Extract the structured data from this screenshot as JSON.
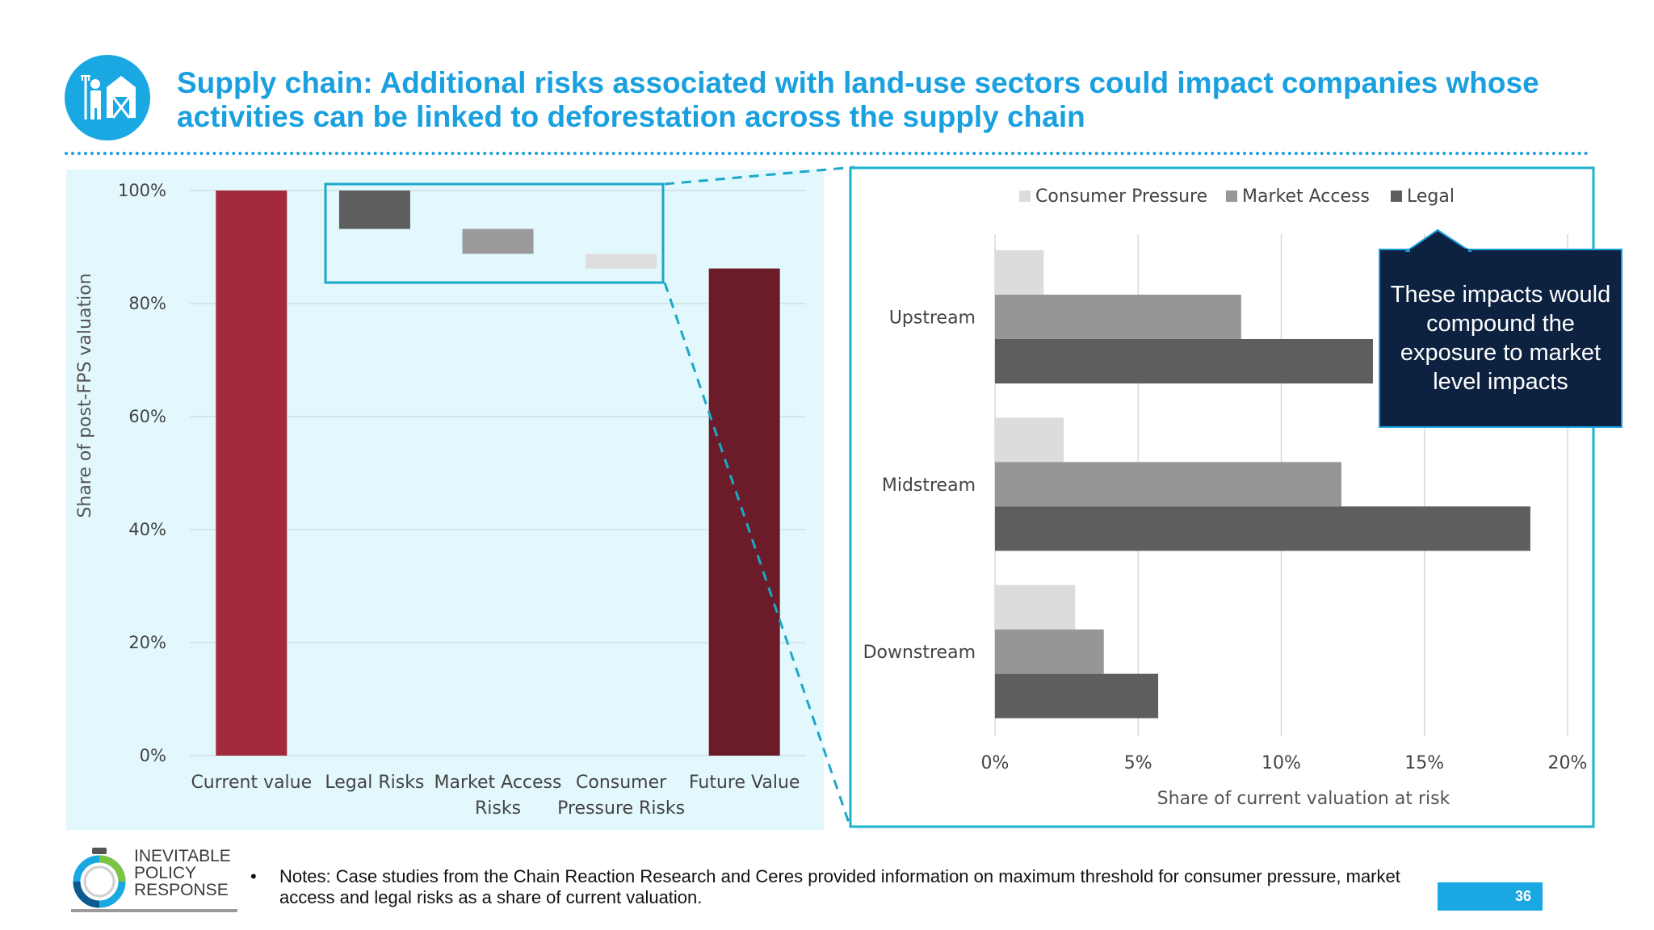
{
  "slide": {
    "title": "Supply chain: Additional risks associated with land-use sectors could impact companies whose activities can be linked to deforestation across the supply chain",
    "callout": "These impacts would compound the exposure to market level impacts",
    "notes_bullet": "•",
    "notes": "Notes: Case studies from the Chain Reaction Research and Ceres provided information on  maximum threshold for consumer pressure, market access and legal risks as a share of current valuation.",
    "logo_text": "INEVITABLE\nPOLICY\nRESPONSE",
    "page_number": "36",
    "accent_color": "#1aa0df",
    "header_icon": "farmer-barn-icon"
  },
  "chart_data": [
    {
      "type": "bar",
      "subtype": "waterfall",
      "categories": [
        "Current value",
        "Legal Risks",
        "Market Access Risks",
        "Consumer Pressure Risks",
        "Future Value"
      ],
      "tick_label_lines": [
        [
          "Current value"
        ],
        [
          "Legal Risks"
        ],
        [
          "Market Access",
          "Risks"
        ],
        [
          "Consumer",
          "Pressure Risks"
        ],
        [
          "Future Value"
        ]
      ],
      "bars": [
        {
          "start": 0,
          "end": 100,
          "color": "#a32a3b"
        },
        {
          "start": 93.2,
          "end": 100,
          "color": "#5e5e5e"
        },
        {
          "start": 88.8,
          "end": 93.2,
          "color": "#9a9a9a"
        },
        {
          "start": 86.2,
          "end": 88.8,
          "color": "#dedede"
        },
        {
          "start": 0,
          "end": 86.2,
          "color": "#6b1c28"
        }
      ],
      "ylabel": "Share of post-FPS valuation",
      "ylim": [
        0,
        100
      ],
      "yticks": [
        0,
        20,
        40,
        60,
        80,
        100
      ],
      "ytick_labels": [
        "0%",
        "20%",
        "40%",
        "60%",
        "80%",
        "100%"
      ],
      "grid": true
    },
    {
      "type": "bar",
      "orientation": "horizontal",
      "categories": [
        "Upstream",
        "Midstream",
        "Downstream"
      ],
      "series": [
        {
          "name": "Consumer Pressure",
          "color": "#dcdcdc",
          "values": [
            1.7,
            2.4,
            2.8
          ]
        },
        {
          "name": "Market Access",
          "color": "#969696",
          "values": [
            8.6,
            12.1,
            3.8
          ]
        },
        {
          "name": "Legal",
          "color": "#5e5e5e",
          "values": [
            13.2,
            18.7,
            5.7
          ]
        }
      ],
      "xlabel": "Share of current valuation at risk",
      "xlim": [
        0,
        20
      ],
      "xticks": [
        0,
        5,
        10,
        15,
        20
      ],
      "xtick_labels": [
        "0%",
        "5%",
        "10%",
        "15%",
        "20%"
      ],
      "legend": "top",
      "grid": true
    }
  ]
}
